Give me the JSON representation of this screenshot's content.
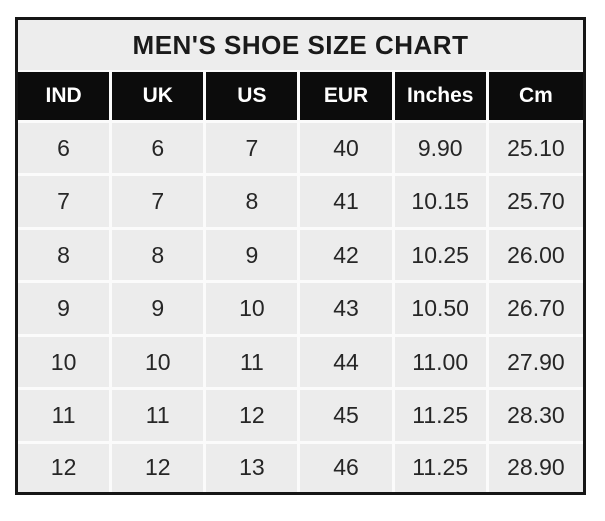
{
  "page": {
    "background": "#ffffff"
  },
  "chart_data": {
    "type": "table",
    "title": "MEN'S SHOE SIZE CHART",
    "columns": [
      "IND",
      "UK",
      "US",
      "EUR",
      "Inches",
      "Cm"
    ],
    "rows": [
      [
        "6",
        "6",
        "7",
        "40",
        "9.90",
        "25.10"
      ],
      [
        "7",
        "7",
        "8",
        "41",
        "10.15",
        "25.70"
      ],
      [
        "8",
        "8",
        "9",
        "42",
        "10.25",
        "26.00"
      ],
      [
        "9",
        "9",
        "10",
        "43",
        "10.50",
        "26.70"
      ],
      [
        "10",
        "10",
        "11",
        "44",
        "11.00",
        "27.90"
      ],
      [
        "11",
        "11",
        "12",
        "45",
        "11.25",
        "28.30"
      ],
      [
        "12",
        "12",
        "13",
        "46",
        "11.25",
        "28.90"
      ]
    ],
    "layout": {
      "header_position": "top",
      "grid": "on",
      "title_position": "top-center"
    },
    "colors": {
      "outer_border": "#161616",
      "title_bg": "#ededed",
      "title_text": "#1a1a1a",
      "header_bg": "#0c0c0c",
      "header_text": "#ffffff",
      "cell_bg": "#ececec",
      "cell_text": "#262626",
      "grid_line": "#fbfbfb"
    }
  }
}
